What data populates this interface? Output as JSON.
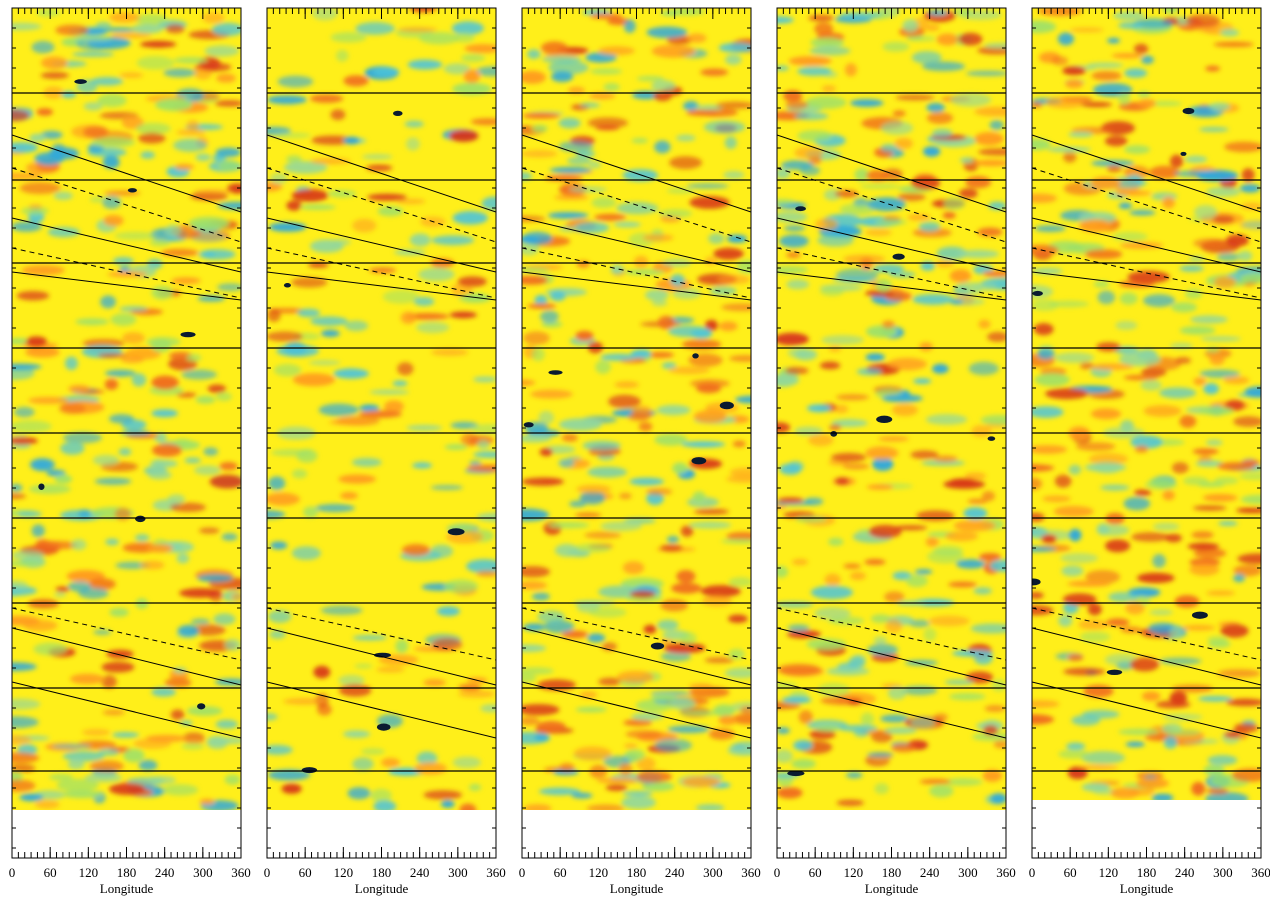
{
  "chart_data": [
    {
      "type": "field",
      "x_label": "Longitude",
      "xlim": [
        0,
        360
      ],
      "xticks": [
        0,
        60,
        120,
        180,
        240,
        300,
        360
      ]
    },
    {
      "type": "field",
      "x_label": "Longitude",
      "xlim": [
        0,
        360
      ],
      "xticks": [
        0,
        60,
        120,
        180,
        240,
        300,
        360
      ]
    },
    {
      "type": "field",
      "x_label": "Longitude",
      "xlim": [
        0,
        360
      ],
      "xticks": [
        0,
        60,
        120,
        180,
        240,
        300,
        360
      ]
    },
    {
      "type": "field",
      "x_label": "Longitude",
      "xlim": [
        0,
        360
      ],
      "xticks": [
        0,
        60,
        120,
        180,
        240,
        300,
        360
      ]
    },
    {
      "type": "field",
      "x_label": "Longitude",
      "xlim": [
        0,
        360
      ],
      "xticks": [
        0,
        60,
        120,
        180,
        240,
        300,
        360
      ]
    }
  ]
}
